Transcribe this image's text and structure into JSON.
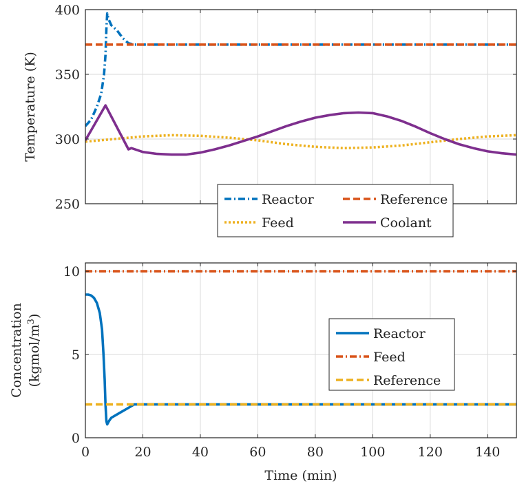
{
  "chart_data": [
    {
      "type": "line",
      "ylabel": "Temperature (K)",
      "xlabel": "",
      "xlim": [
        0,
        150
      ],
      "ylim": [
        250,
        400
      ],
      "xticks": [
        0,
        20,
        40,
        60,
        80,
        100,
        120,
        140
      ],
      "yticks": [
        250,
        300,
        350,
        400
      ],
      "show_xtick_labels": false,
      "grid": true,
      "legend": {
        "placement": "bottom-right",
        "columns": 2
      },
      "series": [
        {
          "name": "Reactor",
          "color": "#0072BD",
          "style": "dash-dot",
          "points": [
            [
              0,
              310
            ],
            [
              2,
              315
            ],
            [
              4,
              325
            ],
            [
              5.5,
              335
            ],
            [
              6.5,
              350
            ],
            [
              7,
              365
            ],
            [
              7.3,
              385
            ],
            [
              7.6,
              397
            ],
            [
              8,
              393
            ],
            [
              9,
              388
            ],
            [
              11,
              384
            ],
            [
              13,
              378
            ],
            [
              15,
              374
            ],
            [
              17,
              373
            ],
            [
              150,
              373
            ]
          ]
        },
        {
          "name": "Reference",
          "color": "#D95319",
          "style": "dashed",
          "points": [
            [
              0,
              373
            ],
            [
              150,
              373
            ]
          ]
        },
        {
          "name": "Feed",
          "color": "#EDB120",
          "style": "dotted",
          "points": [
            [
              0,
              298
            ],
            [
              10,
              300
            ],
            [
              20,
              302
            ],
            [
              30,
              303
            ],
            [
              40,
              302.5
            ],
            [
              50,
              301
            ],
            [
              60,
              299
            ],
            [
              70,
              296
            ],
            [
              80,
              294
            ],
            [
              90,
              293
            ],
            [
              100,
              293.5
            ],
            [
              110,
              295
            ],
            [
              120,
              297.5
            ],
            [
              130,
              300
            ],
            [
              140,
              302
            ],
            [
              150,
              303
            ]
          ]
        },
        {
          "name": "Coolant",
          "color": "#7E2F8E",
          "style": "solid",
          "points": [
            [
              0,
              299
            ],
            [
              7,
              326
            ],
            [
              15,
              292
            ],
            [
              16,
              293
            ],
            [
              20,
              290
            ],
            [
              25,
              288.5
            ],
            [
              30,
              288
            ],
            [
              35,
              288
            ],
            [
              40,
              289.5
            ],
            [
              45,
              292
            ],
            [
              50,
              295
            ],
            [
              55,
              298.5
            ],
            [
              60,
              302
            ],
            [
              65,
              306
            ],
            [
              70,
              310
            ],
            [
              75,
              313.5
            ],
            [
              80,
              316.5
            ],
            [
              85,
              318.5
            ],
            [
              90,
              320
            ],
            [
              95,
              320.5
            ],
            [
              100,
              320
            ],
            [
              105,
              317.5
            ],
            [
              110,
              314
            ],
            [
              115,
              309.5
            ],
            [
              120,
              304.5
            ],
            [
              125,
              300
            ],
            [
              130,
              296
            ],
            [
              135,
              293
            ],
            [
              140,
              290.5
            ],
            [
              145,
              289
            ],
            [
              150,
              288
            ]
          ]
        }
      ]
    },
    {
      "type": "line",
      "ylabel": "Concentration",
      "ylabel_units": "(kgmol/m",
      "ylabel_sup": "3",
      "ylabel_close": ")",
      "xlabel": "Time (min)",
      "xlim": [
        0,
        150
      ],
      "ylim": [
        0,
        10.5
      ],
      "xticks": [
        0,
        20,
        40,
        60,
        80,
        100,
        120,
        140
      ],
      "yticks": [
        0,
        5,
        10
      ],
      "show_xtick_labels": true,
      "grid": true,
      "legend": {
        "placement": "right",
        "columns": 1
      },
      "series": [
        {
          "name": "Reactor",
          "color": "#0072BD",
          "style": "solid",
          "points": [
            [
              0,
              8.6
            ],
            [
              1,
              8.6
            ],
            [
              2,
              8.55
            ],
            [
              3,
              8.4
            ],
            [
              4,
              8.1
            ],
            [
              5,
              7.5
            ],
            [
              5.8,
              6.5
            ],
            [
              6.3,
              5.0
            ],
            [
              6.7,
              3.5
            ],
            [
              7,
              2.0
            ],
            [
              7.3,
              1.0
            ],
            [
              7.6,
              0.8
            ],
            [
              8.2,
              1.0
            ],
            [
              9,
              1.2
            ],
            [
              12,
              1.5
            ],
            [
              15,
              1.8
            ],
            [
              17,
              2.0
            ],
            [
              150,
              2.0
            ]
          ]
        },
        {
          "name": "Feed",
          "color": "#D95319",
          "style": "dash-dot",
          "points": [
            [
              0,
              10
            ],
            [
              150,
              10
            ]
          ]
        },
        {
          "name": "Reference",
          "color": "#EDB120",
          "style": "dashed",
          "points": [
            [
              0,
              2
            ],
            [
              150,
              2
            ]
          ]
        }
      ]
    }
  ]
}
